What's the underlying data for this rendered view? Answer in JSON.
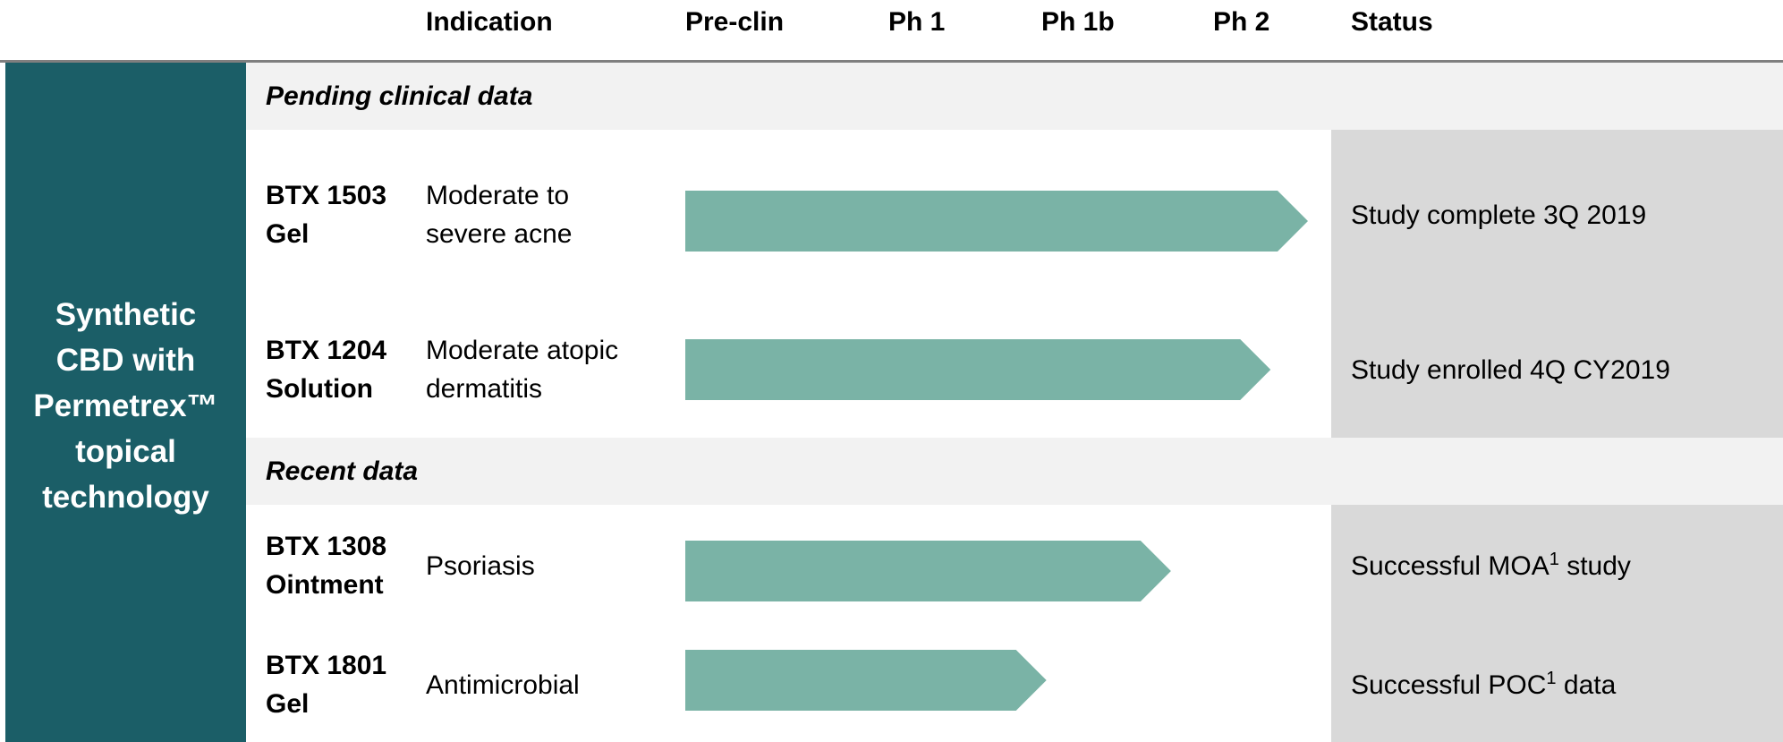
{
  "header": {
    "indication": "Indication",
    "preclin": "Pre-clin",
    "ph1": "Ph 1",
    "ph1b": "Ph 1b",
    "ph2": "Ph 2",
    "status": "Status"
  },
  "sidebar": {
    "lines": [
      "Synthetic",
      "CBD with",
      "Permetrex™",
      "topical",
      "technology"
    ]
  },
  "sections": {
    "pending": "Pending clinical data",
    "recent": "Recent data"
  },
  "rows": [
    {
      "product": [
        "BTX 1503",
        "Gel"
      ],
      "indication": [
        "Moderate to",
        "severe acne"
      ],
      "status": "Study complete 3Q 2019",
      "stage_progress": 1.0
    },
    {
      "product": [
        "BTX 1204",
        "Solution"
      ],
      "indication": [
        "Moderate atopic",
        "dermatitis"
      ],
      "status": "Study enrolled 4Q CY2019",
      "stage_progress": 0.94
    },
    {
      "product": [
        "BTX 1308",
        "Ointment"
      ],
      "indication": [
        "Psoriasis"
      ],
      "status_pre": "Successful MOA",
      "status_sup": "1",
      "status_post": " study",
      "stage_progress": 0.78
    },
    {
      "product": [
        "BTX 1801",
        "Gel"
      ],
      "indication": [
        "Antimicrobial"
      ],
      "status_pre": "Successful POC",
      "status_sup": "1",
      "status_post": " data",
      "stage_progress": 0.58
    }
  ],
  "colors": {
    "sidebar": "#1b5e67",
    "bar": "#7ab3a6",
    "section_band": "#f2f2f2",
    "status_band": "#d9d9d9",
    "rule": "#7f7f7f"
  }
}
